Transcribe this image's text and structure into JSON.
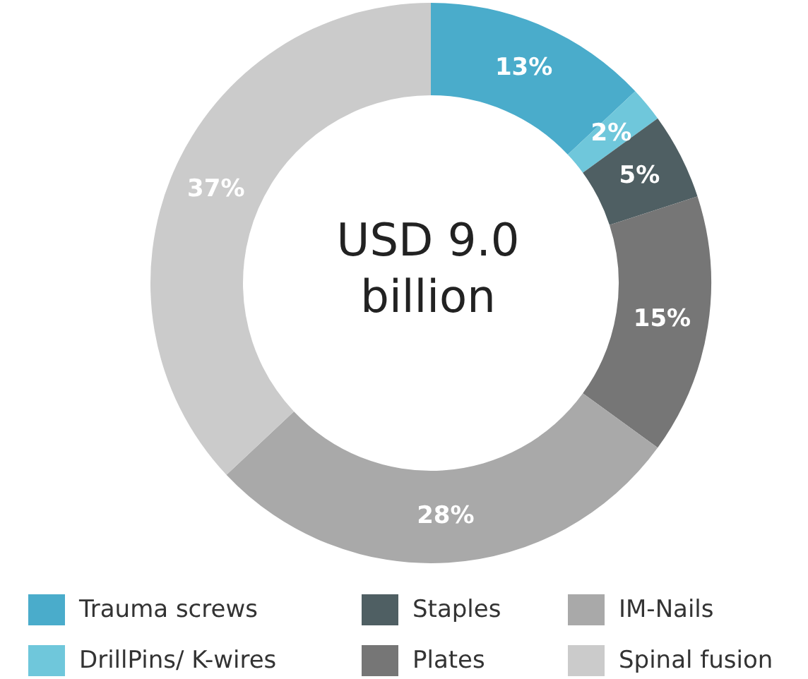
{
  "chart_data": {
    "type": "donut",
    "categories": [
      "Trauma screws",
      "DrillPins/ K-wires",
      "Staples",
      "Plates",
      "IM-Nails",
      "Spinal fusion"
    ],
    "values": [
      13,
      2,
      5,
      15,
      28,
      37
    ],
    "colors": [
      "#4aaccb",
      "#6fc7db",
      "#4f5f63",
      "#767676",
      "#a9a9a9",
      "#cbcbcb"
    ],
    "value_labels": [
      "13%",
      "2%",
      "5%",
      "15%",
      "28%",
      "37%"
    ],
    "annotations": [
      "USD 9.0 billion"
    ],
    "legend": "bottom"
  }
}
